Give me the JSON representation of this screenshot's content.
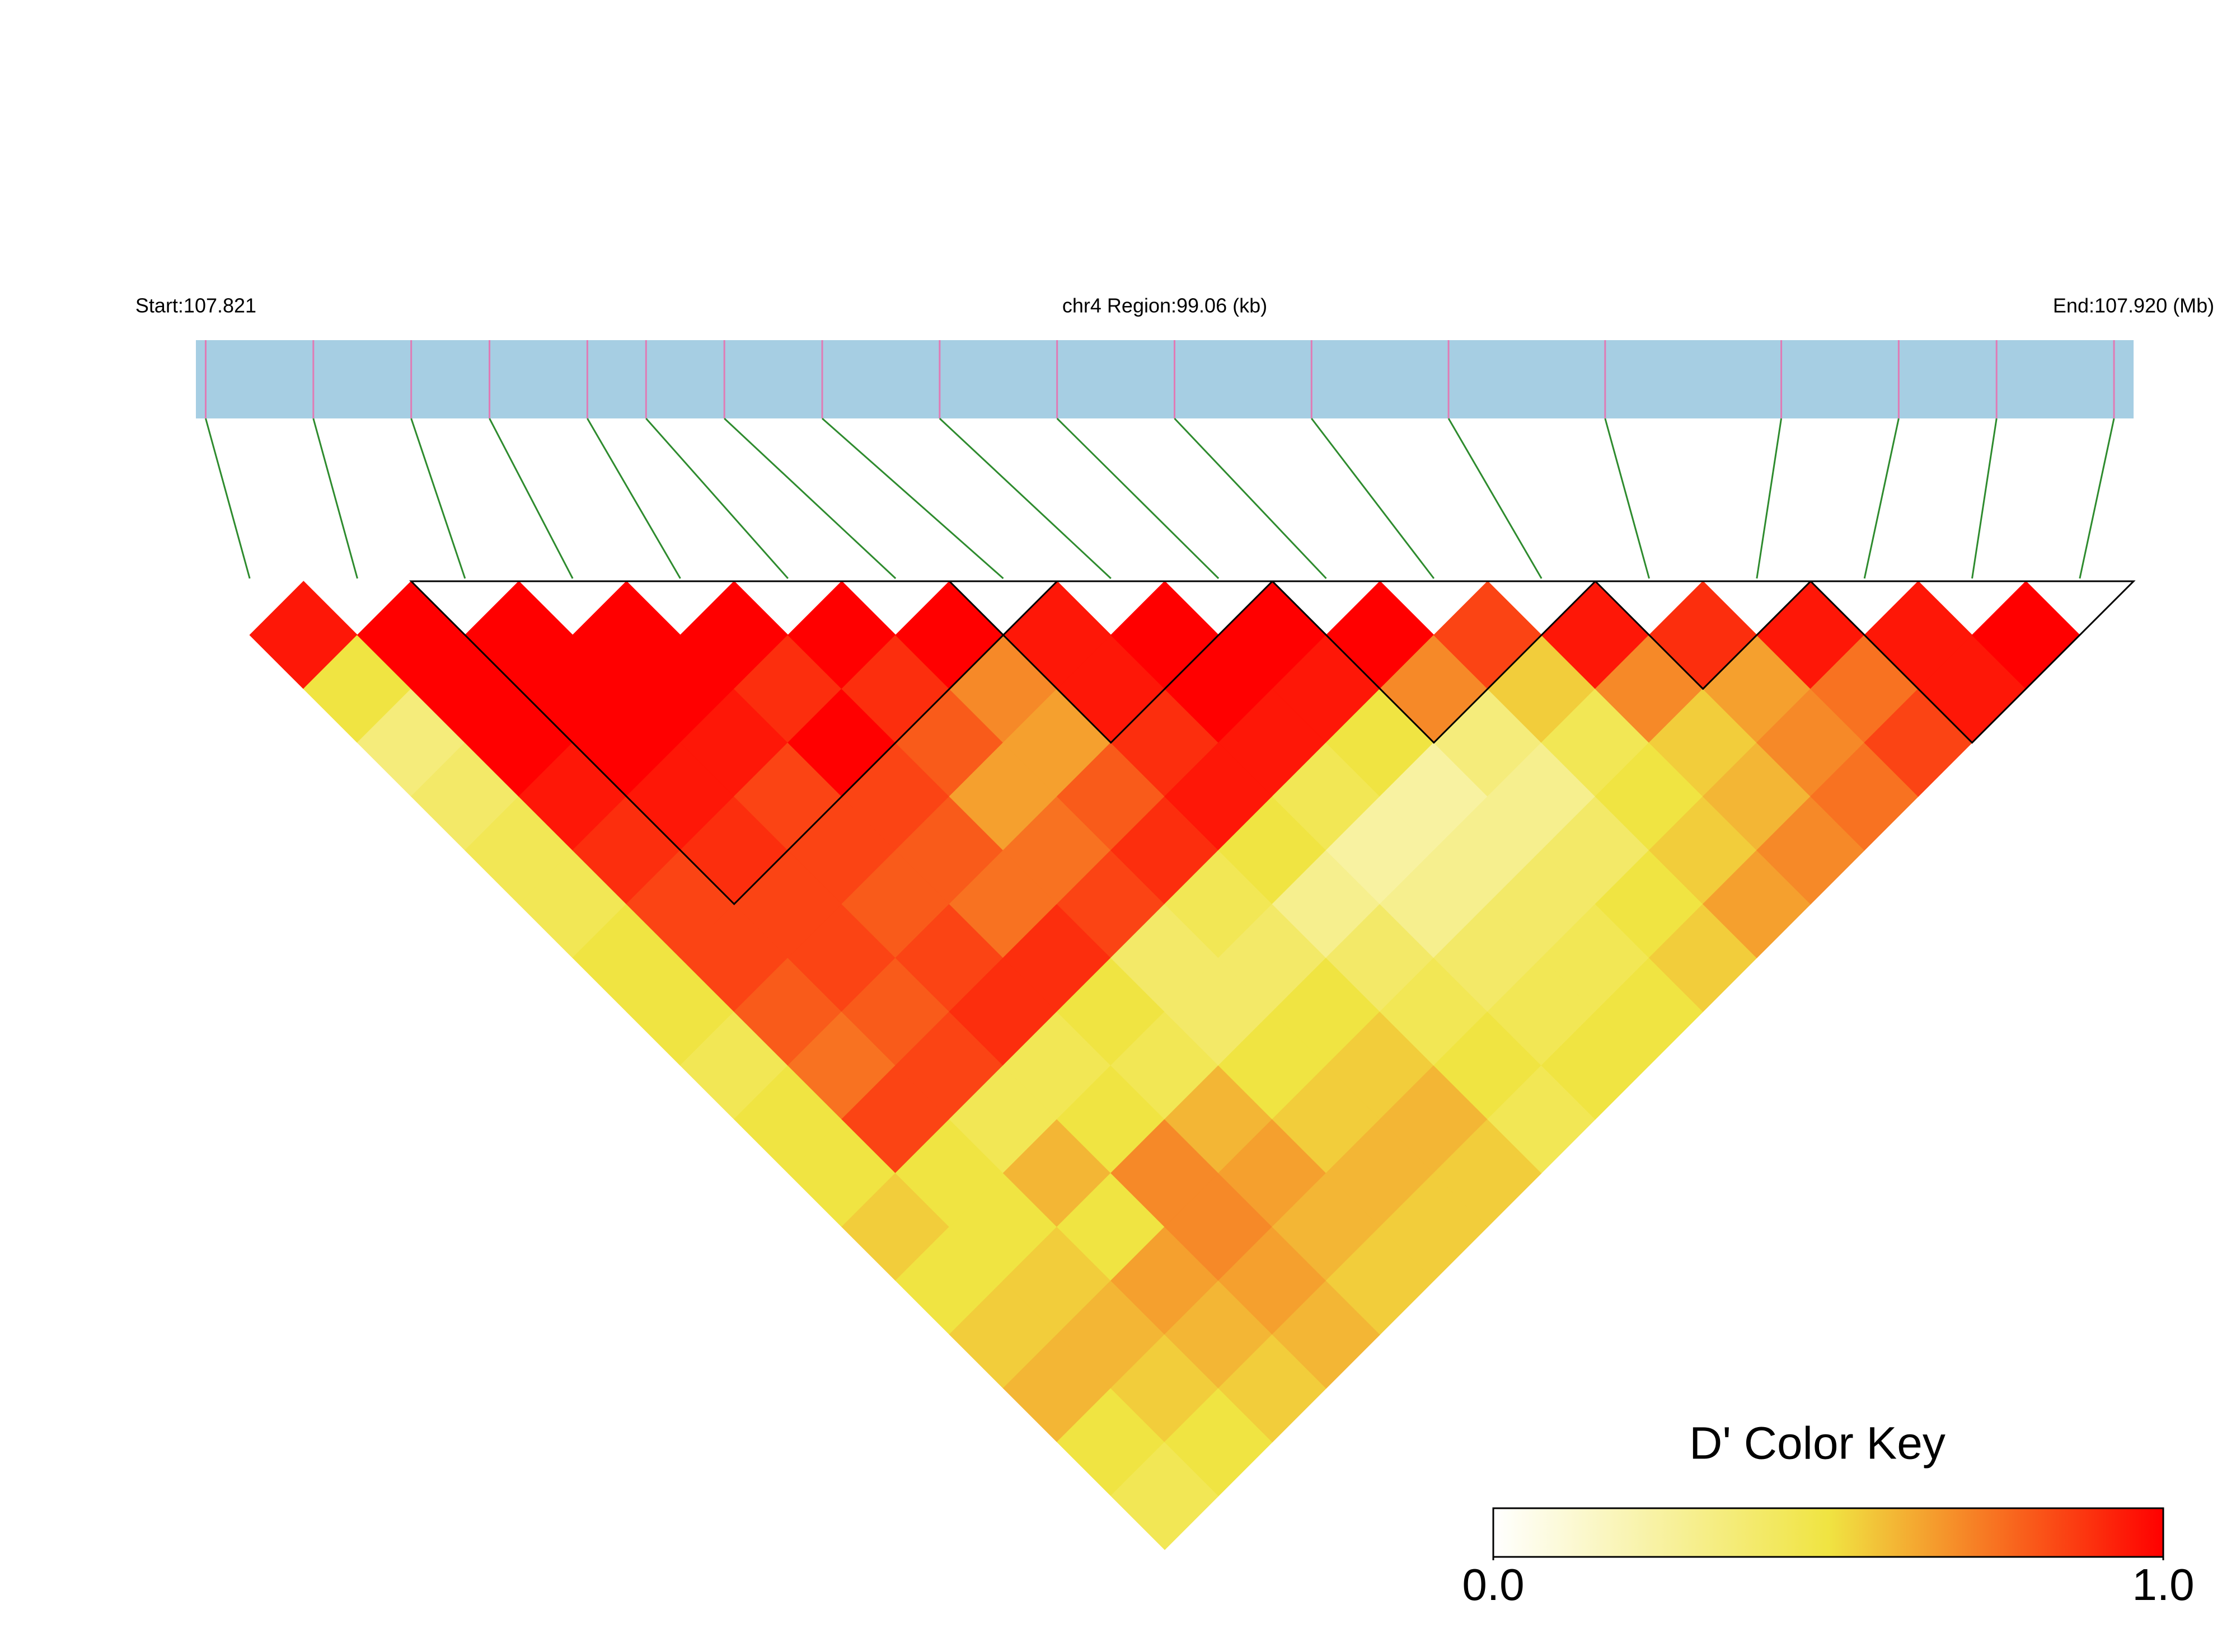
{
  "chart_data": {
    "type": "ld-heatmap",
    "start_label": "Start:107.821",
    "region_label": "chr4 Region:99.06 (kb)",
    "end_label": "End:107.920 (Mb)",
    "xlim": [
      107.821,
      107.92
    ],
    "bar_color": "#a6cee3",
    "snp_line_color": "#e07bb5",
    "connector_color": "#2e8b2e",
    "positions": [
      107.8215,
      107.827,
      107.832,
      107.836,
      107.841,
      107.844,
      107.848,
      107.853,
      107.859,
      107.865,
      107.871,
      107.878,
      107.885,
      107.893,
      107.902,
      107.908,
      107.913,
      107.919
    ],
    "dprime": [
      [
        0.95,
        0.5,
        0.35,
        0.4,
        0.45,
        0.45,
        0.5,
        0.5,
        0.45,
        0.5,
        0.5,
        0.55,
        0.5,
        0.55,
        0.6,
        0.5,
        0.45
      ],
      [
        1,
        1,
        1,
        0.95,
        0.9,
        0.85,
        0.85,
        0.8,
        0.75,
        0.85,
        0.5,
        0.5,
        0.55,
        0.6,
        0.55,
        0.5
      ],
      [
        1,
        1,
        1,
        0.95,
        0.9,
        0.85,
        0.85,
        0.8,
        0.85,
        0.45,
        0.6,
        0.5,
        0.65,
        0.6,
        0.55
      ],
      [
        1,
        1,
        0.95,
        0.85,
        0.85,
        0.8,
        0.85,
        0.9,
        0.45,
        0.5,
        0.7,
        0.7,
        0.65,
        0.6
      ],
      [
        1,
        0.9,
        1,
        0.85,
        0.8,
        0.75,
        0.9,
        0.5,
        0.45,
        0.6,
        0.65,
        0.6,
        0.55
      ],
      [
        1,
        0.9,
        0.8,
        0.65,
        0.75,
        0.85,
        0.4,
        0.4,
        0.5,
        0.55,
        0.6,
        0.55
      ],
      [
        1,
        0.7,
        0.65,
        0.8,
        0.9,
        0.45,
        0.4,
        0.5,
        0.55,
        0.6,
        0.55
      ],
      [
        0.95,
        0.95,
        0.9,
        0.95,
        0.5,
        0.3,
        0.4,
        0.45,
        0.5,
        0.45
      ],
      [
        1,
        1,
        0.95,
        0.45,
        0.25,
        0.3,
        0.4,
        0.45,
        0.5
      ],
      [
        1,
        0.95,
        0.5,
        0.25,
        0.3,
        0.4,
        0.45,
        0.5
      ],
      [
        1,
        0.7,
        0.35,
        0.3,
        0.4,
        0.5,
        0.55
      ],
      [
        0.85,
        0.55,
        0.45,
        0.5,
        0.55,
        0.65
      ],
      [
        0.95,
        0.7,
        0.55,
        0.6,
        0.7
      ],
      [
        0.9,
        0.65,
        0.7,
        0.75
      ],
      [
        0.95,
        0.75,
        0.85
      ],
      [
        0.95,
        0.95
      ],
      [
        1
      ]
    ],
    "blocks": [
      [
        2,
        7
      ],
      [
        7,
        9
      ],
      [
        10,
        12
      ],
      [
        13,
        14
      ],
      [
        15,
        17
      ]
    ],
    "colorbar": {
      "title": "D' Color Key",
      "lim": [
        0,
        1
      ],
      "stops": [
        {
          "value": 0,
          "color": "#ffffff"
        },
        {
          "value": 0.5,
          "color": "#f0e442"
        },
        {
          "value": 1,
          "color": "#ff0000"
        }
      ],
      "ticks": [
        {
          "value": 0,
          "label": "0.0"
        },
        {
          "value": 1,
          "label": "1.0"
        }
      ]
    }
  }
}
